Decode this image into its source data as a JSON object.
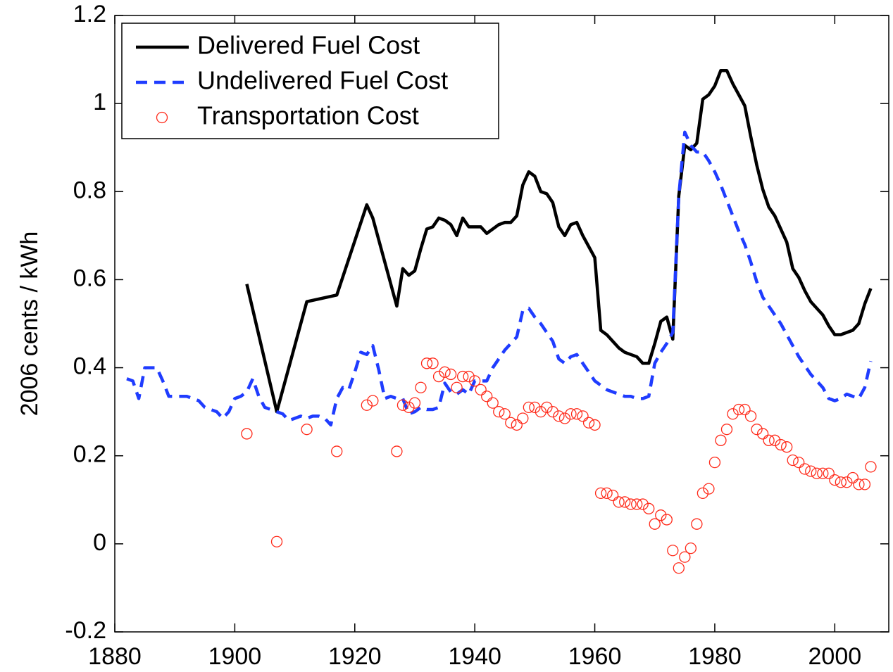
{
  "chart_data": {
    "type": "line",
    "y_label": "2006 cents / kWh",
    "xlim": [
      1880,
      2009
    ],
    "ylim": [
      -0.2,
      1.2
    ],
    "xticks": [
      1880,
      1900,
      1920,
      1940,
      1960,
      1980,
      2000
    ],
    "yticks": [
      -0.2,
      0,
      0.2,
      0.4,
      0.6,
      0.8,
      1,
      1.2
    ],
    "grid": false,
    "legend_location": "northwest",
    "series": [
      {
        "name": "Delivered Fuel Cost",
        "color": "#000000",
        "style": "solid",
        "x": [
          1902,
          1907,
          1912,
          1917,
          1922,
          1923,
          1927,
          1928,
          1929,
          1930,
          1931,
          1932,
          1933,
          1934,
          1935,
          1936,
          1937,
          1938,
          1939,
          1940,
          1941,
          1942,
          1943,
          1944,
          1945,
          1946,
          1947,
          1948,
          1949,
          1950,
          1951,
          1952,
          1953,
          1954,
          1955,
          1956,
          1957,
          1958,
          1959,
          1960,
          1961,
          1962,
          1963,
          1964,
          1965,
          1966,
          1967,
          1968,
          1969,
          1970,
          1971,
          1972,
          1973,
          1974,
          1975,
          1976,
          1977,
          1978,
          1979,
          1980,
          1981,
          1982,
          1983,
          1984,
          1985,
          1986,
          1987,
          1988,
          1989,
          1990,
          1991,
          1992,
          1993,
          1994,
          1995,
          1996,
          1997,
          1998,
          1999,
          2000,
          2001,
          2002,
          2003,
          2004,
          2005,
          2006
        ],
        "values": [
          0.59,
          0.3,
          0.55,
          0.565,
          0.77,
          0.74,
          0.54,
          0.625,
          0.61,
          0.62,
          0.67,
          0.715,
          0.72,
          0.74,
          0.735,
          0.725,
          0.7,
          0.74,
          0.72,
          0.72,
          0.72,
          0.705,
          0.715,
          0.725,
          0.73,
          0.73,
          0.745,
          0.815,
          0.845,
          0.835,
          0.8,
          0.795,
          0.775,
          0.72,
          0.7,
          0.725,
          0.73,
          0.7,
          0.675,
          0.65,
          0.485,
          0.475,
          0.46,
          0.445,
          0.435,
          0.43,
          0.425,
          0.41,
          0.41,
          0.455,
          0.505,
          0.515,
          0.465,
          0.79,
          0.905,
          0.895,
          0.91,
          1.01,
          1.02,
          1.04,
          1.075,
          1.075,
          1.045,
          1.02,
          0.995,
          0.925,
          0.86,
          0.805,
          0.765,
          0.745,
          0.715,
          0.685,
          0.625,
          0.605,
          0.575,
          0.55,
          0.535,
          0.52,
          0.495,
          0.475,
          0.475,
          0.48,
          0.485,
          0.5,
          0.545,
          0.58
        ]
      },
      {
        "name": "Undelivered Fuel Cost",
        "color": "#1f3cff",
        "style": "dashed",
        "x": [
          1882,
          1883,
          1884,
          1885,
          1886,
          1887,
          1888,
          1889,
          1890,
          1891,
          1892,
          1893,
          1894,
          1895,
          1896,
          1897,
          1898,
          1899,
          1900,
          1901,
          1902,
          1903,
          1904,
          1905,
          1906,
          1907,
          1908,
          1909,
          1910,
          1911,
          1912,
          1913,
          1914,
          1915,
          1916,
          1917,
          1918,
          1919,
          1920,
          1921,
          1922,
          1923,
          1924,
          1925,
          1926,
          1927,
          1928,
          1929,
          1930,
          1931,
          1932,
          1933,
          1934,
          1935,
          1936,
          1937,
          1938,
          1939,
          1940,
          1941,
          1942,
          1943,
          1944,
          1945,
          1946,
          1947,
          1948,
          1949,
          1950,
          1951,
          1952,
          1953,
          1954,
          1955,
          1956,
          1957,
          1958,
          1959,
          1960,
          1961,
          1962,
          1963,
          1964,
          1965,
          1966,
          1967,
          1968,
          1969,
          1970,
          1971,
          1972,
          1973,
          1974,
          1975,
          1976,
          1977,
          1978,
          1979,
          1980,
          1981,
          1982,
          1983,
          1984,
          1985,
          1986,
          1987,
          1988,
          1989,
          1990,
          1991,
          1992,
          1993,
          1994,
          1995,
          1996,
          1997,
          1998,
          1999,
          2000,
          2001,
          2002,
          2003,
          2004,
          2005,
          2006
        ],
        "values": [
          0.375,
          0.37,
          0.33,
          0.4,
          0.4,
          0.4,
          0.37,
          0.335,
          0.335,
          0.335,
          0.335,
          0.33,
          0.325,
          0.31,
          0.305,
          0.3,
          0.285,
          0.3,
          0.33,
          0.335,
          0.345,
          0.375,
          0.335,
          0.31,
          0.305,
          0.3,
          0.295,
          0.28,
          0.285,
          0.29,
          0.285,
          0.29,
          0.29,
          0.285,
          0.27,
          0.33,
          0.355,
          0.35,
          0.39,
          0.435,
          0.43,
          0.45,
          0.395,
          0.33,
          0.335,
          0.33,
          0.33,
          0.295,
          0.3,
          0.31,
          0.305,
          0.305,
          0.31,
          0.365,
          0.345,
          0.34,
          0.35,
          0.34,
          0.37,
          0.37,
          0.37,
          0.4,
          0.42,
          0.44,
          0.455,
          0.47,
          0.53,
          0.535,
          0.515,
          0.5,
          0.48,
          0.46,
          0.42,
          0.41,
          0.425,
          0.43,
          0.41,
          0.39,
          0.37,
          0.36,
          0.35,
          0.345,
          0.34,
          0.335,
          0.335,
          0.33,
          0.33,
          0.335,
          0.41,
          0.435,
          0.455,
          0.48,
          0.79,
          0.935,
          0.905,
          0.89,
          0.89,
          0.87,
          0.845,
          0.815,
          0.78,
          0.745,
          0.71,
          0.68,
          0.64,
          0.595,
          0.56,
          0.54,
          0.52,
          0.5,
          0.475,
          0.45,
          0.425,
          0.405,
          0.385,
          0.37,
          0.355,
          0.33,
          0.325,
          0.33,
          0.34,
          0.335,
          0.33,
          0.355,
          0.415
        ]
      },
      {
        "name": "Transportation Cost",
        "color": "#ff2a1a",
        "style": "circle",
        "x": [
          1902,
          1907,
          1912,
          1917,
          1922,
          1923,
          1927,
          1928,
          1929,
          1930,
          1931,
          1932,
          1933,
          1934,
          1935,
          1936,
          1937,
          1938,
          1939,
          1940,
          1941,
          1942,
          1943,
          1944,
          1945,
          1946,
          1947,
          1948,
          1949,
          1950,
          1951,
          1952,
          1953,
          1954,
          1955,
          1956,
          1957,
          1958,
          1959,
          1960,
          1961,
          1962,
          1963,
          1964,
          1965,
          1966,
          1967,
          1968,
          1969,
          1970,
          1971,
          1972,
          1973,
          1974,
          1975,
          1976,
          1977,
          1978,
          1979,
          1980,
          1981,
          1982,
          1983,
          1984,
          1985,
          1986,
          1987,
          1988,
          1989,
          1990,
          1991,
          1992,
          1993,
          1994,
          1995,
          1996,
          1997,
          1998,
          1999,
          2000,
          2001,
          2002,
          2003,
          2004,
          2005,
          2006
        ],
        "values": [
          0.25,
          0.005,
          0.26,
          0.21,
          0.315,
          0.325,
          0.21,
          0.315,
          0.31,
          0.32,
          0.355,
          0.41,
          0.41,
          0.38,
          0.39,
          0.385,
          0.355,
          0.38,
          0.38,
          0.37,
          0.35,
          0.335,
          0.32,
          0.3,
          0.295,
          0.275,
          0.27,
          0.285,
          0.31,
          0.31,
          0.3,
          0.31,
          0.3,
          0.29,
          0.285,
          0.295,
          0.295,
          0.29,
          0.275,
          0.27,
          0.115,
          0.115,
          0.11,
          0.095,
          0.095,
          0.09,
          0.09,
          0.09,
          0.08,
          0.045,
          0.065,
          0.055,
          -0.015,
          -0.055,
          -0.03,
          -0.01,
          0.045,
          0.115,
          0.125,
          0.185,
          0.235,
          0.26,
          0.295,
          0.305,
          0.305,
          0.29,
          0.26,
          0.25,
          0.235,
          0.235,
          0.225,
          0.22,
          0.19,
          0.185,
          0.17,
          0.165,
          0.16,
          0.16,
          0.16,
          0.145,
          0.14,
          0.14,
          0.15,
          0.135,
          0.135,
          0.175
        ]
      }
    ]
  }
}
